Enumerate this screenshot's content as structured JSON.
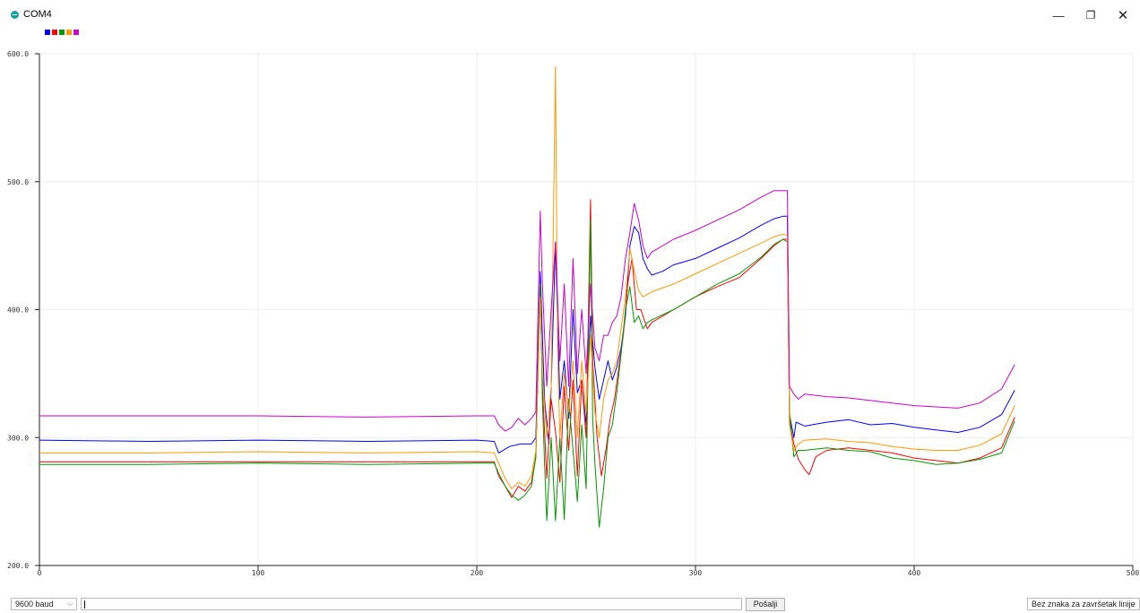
{
  "window": {
    "title": "COM4",
    "controls": {
      "minimize": "—",
      "restore": "❐",
      "close": "✕"
    }
  },
  "legend_colors": [
    "#0000ff",
    "#ff0000",
    "#009900",
    "#ff9900",
    "#cc00cc"
  ],
  "bottom_bar": {
    "baud": "9600 baud",
    "send_text": "",
    "send_label": "Pošalji",
    "line_ending": "Bez znaka za završetak linije"
  },
  "chart_data": {
    "type": "line",
    "title": "",
    "xlabel": "",
    "ylabel": "",
    "xlim": [
      0,
      500
    ],
    "ylim": [
      200,
      600
    ],
    "x_ticks": [
      0,
      100,
      200,
      300,
      400,
      500
    ],
    "y_ticks": [
      200,
      300,
      400,
      500,
      600
    ],
    "y_tick_labels": [
      "200.0",
      "300.0",
      "400.0",
      "500.0",
      "600.0"
    ],
    "grid": true,
    "legend": "top-left",
    "series": [
      {
        "color": "#0000ff",
        "points": [
          [
            0,
            298
          ],
          [
            50,
            297
          ],
          [
            100,
            298
          ],
          [
            150,
            297
          ],
          [
            200,
            298
          ],
          [
            208,
            297
          ],
          [
            210,
            288
          ],
          [
            215,
            293
          ],
          [
            220,
            295
          ],
          [
            225,
            295
          ],
          [
            227,
            300
          ],
          [
            229,
            430
          ],
          [
            231,
            330
          ],
          [
            233,
            295
          ],
          [
            234,
            340
          ],
          [
            236,
            452
          ],
          [
            238,
            330
          ],
          [
            240,
            360
          ],
          [
            242,
            315
          ],
          [
            244,
            400
          ],
          [
            246,
            335
          ],
          [
            248,
            345
          ],
          [
            250,
            310
          ],
          [
            252,
            395
          ],
          [
            254,
            355
          ],
          [
            256,
            330
          ],
          [
            258,
            345
          ],
          [
            260,
            360
          ],
          [
            262,
            345
          ],
          [
            264,
            355
          ],
          [
            266,
            370
          ],
          [
            268,
            395
          ],
          [
            270,
            450
          ],
          [
            272,
            465
          ],
          [
            274,
            460
          ],
          [
            276,
            440
          ],
          [
            278,
            432
          ],
          [
            280,
            427
          ],
          [
            285,
            430
          ],
          [
            290,
            435
          ],
          [
            300,
            440
          ],
          [
            310,
            448
          ],
          [
            320,
            456
          ],
          [
            330,
            466
          ],
          [
            336,
            471
          ],
          [
            340,
            473
          ],
          [
            342,
            473
          ],
          [
            343,
            318
          ],
          [
            345,
            300
          ],
          [
            346,
            312
          ],
          [
            350,
            309
          ],
          [
            360,
            312
          ],
          [
            370,
            314
          ],
          [
            380,
            310
          ],
          [
            390,
            311
          ],
          [
            400,
            308
          ],
          [
            410,
            306
          ],
          [
            420,
            304
          ],
          [
            430,
            308
          ],
          [
            440,
            318
          ],
          [
            446,
            337
          ]
        ]
      },
      {
        "color": "#ff0000",
        "points": [
          [
            0,
            281
          ],
          [
            50,
            281
          ],
          [
            100,
            281
          ],
          [
            150,
            281
          ],
          [
            200,
            281
          ],
          [
            208,
            281
          ],
          [
            210,
            270
          ],
          [
            213,
            262
          ],
          [
            216,
            253
          ],
          [
            219,
            262
          ],
          [
            222,
            258
          ],
          [
            225,
            265
          ],
          [
            227,
            285
          ],
          [
            229,
            420
          ],
          [
            230,
            340
          ],
          [
            232,
            268
          ],
          [
            234,
            330
          ],
          [
            236,
            305
          ],
          [
            238,
            265
          ],
          [
            240,
            340
          ],
          [
            242,
            290
          ],
          [
            244,
            345
          ],
          [
            246,
            270
          ],
          [
            248,
            345
          ],
          [
            250,
            300
          ],
          [
            252,
            486
          ],
          [
            253,
            360
          ],
          [
            255,
            300
          ],
          [
            257,
            270
          ],
          [
            259,
            290
          ],
          [
            261,
            315
          ],
          [
            263,
            330
          ],
          [
            265,
            355
          ],
          [
            267,
            380
          ],
          [
            269,
            420
          ],
          [
            271,
            440
          ],
          [
            273,
            400
          ],
          [
            275,
            400
          ],
          [
            278,
            385
          ],
          [
            280,
            390
          ],
          [
            290,
            400
          ],
          [
            300,
            410
          ],
          [
            310,
            418
          ],
          [
            320,
            425
          ],
          [
            330,
            440
          ],
          [
            336,
            450
          ],
          [
            340,
            455
          ],
          [
            342,
            455
          ],
          [
            343,
            312
          ],
          [
            345,
            295
          ],
          [
            347,
            283
          ],
          [
            350,
            275
          ],
          [
            352,
            271
          ],
          [
            355,
            285
          ],
          [
            360,
            290
          ],
          [
            370,
            292
          ],
          [
            380,
            290
          ],
          [
            390,
            288
          ],
          [
            400,
            284
          ],
          [
            410,
            282
          ],
          [
            420,
            280
          ],
          [
            430,
            284
          ],
          [
            440,
            292
          ],
          [
            446,
            316
          ]
        ]
      },
      {
        "color": "#009900",
        "points": [
          [
            0,
            279
          ],
          [
            50,
            279
          ],
          [
            100,
            280
          ],
          [
            150,
            279
          ],
          [
            200,
            280
          ],
          [
            208,
            280
          ],
          [
            210,
            272
          ],
          [
            213,
            262
          ],
          [
            216,
            255
          ],
          [
            219,
            251
          ],
          [
            222,
            255
          ],
          [
            225,
            262
          ],
          [
            227,
            285
          ],
          [
            229,
            420
          ],
          [
            230,
            330
          ],
          [
            231,
            280
          ],
          [
            232,
            235
          ],
          [
            234,
            300
          ],
          [
            236,
            235
          ],
          [
            238,
            300
          ],
          [
            240,
            236
          ],
          [
            242,
            330
          ],
          [
            244,
            290
          ],
          [
            246,
            250
          ],
          [
            248,
            310
          ],
          [
            250,
            260
          ],
          [
            252,
            470
          ],
          [
            253,
            315
          ],
          [
            254,
            280
          ],
          [
            256,
            230
          ],
          [
            258,
            260
          ],
          [
            260,
            300
          ],
          [
            262,
            310
          ],
          [
            264,
            335
          ],
          [
            266,
            365
          ],
          [
            268,
            400
          ],
          [
            270,
            418
          ],
          [
            272,
            390
          ],
          [
            274,
            395
          ],
          [
            276,
            385
          ],
          [
            278,
            390
          ],
          [
            280,
            392
          ],
          [
            290,
            400
          ],
          [
            300,
            410
          ],
          [
            310,
            420
          ],
          [
            320,
            428
          ],
          [
            330,
            441
          ],
          [
            336,
            451
          ],
          [
            340,
            455
          ],
          [
            342,
            453
          ],
          [
            343,
            320
          ],
          [
            345,
            285
          ],
          [
            347,
            290
          ],
          [
            350,
            290
          ],
          [
            360,
            292
          ],
          [
            370,
            290
          ],
          [
            380,
            289
          ],
          [
            390,
            284
          ],
          [
            400,
            282
          ],
          [
            410,
            279
          ],
          [
            420,
            280
          ],
          [
            430,
            283
          ],
          [
            440,
            288
          ],
          [
            446,
            313
          ]
        ]
      },
      {
        "color": "#ff9900",
        "points": [
          [
            0,
            288
          ],
          [
            50,
            288
          ],
          [
            100,
            289
          ],
          [
            150,
            288
          ],
          [
            200,
            289
          ],
          [
            208,
            288
          ],
          [
            210,
            280
          ],
          [
            213,
            268
          ],
          [
            216,
            260
          ],
          [
            219,
            265
          ],
          [
            222,
            262
          ],
          [
            225,
            270
          ],
          [
            227,
            290
          ],
          [
            229,
            410
          ],
          [
            230,
            350
          ],
          [
            232,
            300
          ],
          [
            234,
            340
          ],
          [
            236,
            590
          ],
          [
            237,
            360
          ],
          [
            238,
            300
          ],
          [
            240,
            350
          ],
          [
            242,
            320
          ],
          [
            244,
            360
          ],
          [
            246,
            300
          ],
          [
            248,
            360
          ],
          [
            250,
            320
          ],
          [
            252,
            380
          ],
          [
            254,
            320
          ],
          [
            256,
            300
          ],
          [
            258,
            330
          ],
          [
            260,
            345
          ],
          [
            262,
            350
          ],
          [
            264,
            360
          ],
          [
            266,
            385
          ],
          [
            268,
            410
          ],
          [
            270,
            448
          ],
          [
            272,
            430
          ],
          [
            274,
            415
          ],
          [
            276,
            410
          ],
          [
            278,
            412
          ],
          [
            280,
            414
          ],
          [
            290,
            420
          ],
          [
            300,
            428
          ],
          [
            310,
            436
          ],
          [
            320,
            444
          ],
          [
            330,
            452
          ],
          [
            336,
            457
          ],
          [
            340,
            459
          ],
          [
            342,
            458
          ],
          [
            343,
            310
          ],
          [
            345,
            290
          ],
          [
            347,
            295
          ],
          [
            350,
            298
          ],
          [
            360,
            299
          ],
          [
            370,
            297
          ],
          [
            380,
            296
          ],
          [
            390,
            293
          ],
          [
            400,
            291
          ],
          [
            410,
            290
          ],
          [
            420,
            290
          ],
          [
            430,
            294
          ],
          [
            440,
            303
          ],
          [
            446,
            325
          ]
        ]
      },
      {
        "color": "#cc00cc",
        "points": [
          [
            0,
            317
          ],
          [
            50,
            317
          ],
          [
            100,
            317
          ],
          [
            150,
            316
          ],
          [
            200,
            317
          ],
          [
            208,
            317
          ],
          [
            210,
            310
          ],
          [
            213,
            305
          ],
          [
            216,
            308
          ],
          [
            219,
            315
          ],
          [
            222,
            310
          ],
          [
            225,
            315
          ],
          [
            227,
            320
          ],
          [
            229,
            477
          ],
          [
            230,
            420
          ],
          [
            232,
            340
          ],
          [
            234,
            400
          ],
          [
            236,
            453
          ],
          [
            238,
            360
          ],
          [
            240,
            420
          ],
          [
            242,
            340
          ],
          [
            244,
            440
          ],
          [
            246,
            350
          ],
          [
            248,
            400
          ],
          [
            250,
            350
          ],
          [
            252,
            420
          ],
          [
            254,
            370
          ],
          [
            256,
            360
          ],
          [
            258,
            380
          ],
          [
            260,
            380
          ],
          [
            262,
            390
          ],
          [
            264,
            395
          ],
          [
            266,
            410
          ],
          [
            268,
            440
          ],
          [
            270,
            460
          ],
          [
            272,
            483
          ],
          [
            274,
            470
          ],
          [
            276,
            450
          ],
          [
            278,
            440
          ],
          [
            280,
            445
          ],
          [
            290,
            455
          ],
          [
            300,
            462
          ],
          [
            310,
            470
          ],
          [
            320,
            478
          ],
          [
            330,
            488
          ],
          [
            336,
            493
          ],
          [
            340,
            493
          ],
          [
            342,
            493
          ],
          [
            343,
            340
          ],
          [
            345,
            334
          ],
          [
            347,
            330
          ],
          [
            350,
            334
          ],
          [
            360,
            332
          ],
          [
            370,
            331
          ],
          [
            380,
            329
          ],
          [
            390,
            327
          ],
          [
            400,
            325
          ],
          [
            410,
            324
          ],
          [
            420,
            323
          ],
          [
            430,
            327
          ],
          [
            440,
            338
          ],
          [
            446,
            357
          ]
        ]
      }
    ]
  }
}
